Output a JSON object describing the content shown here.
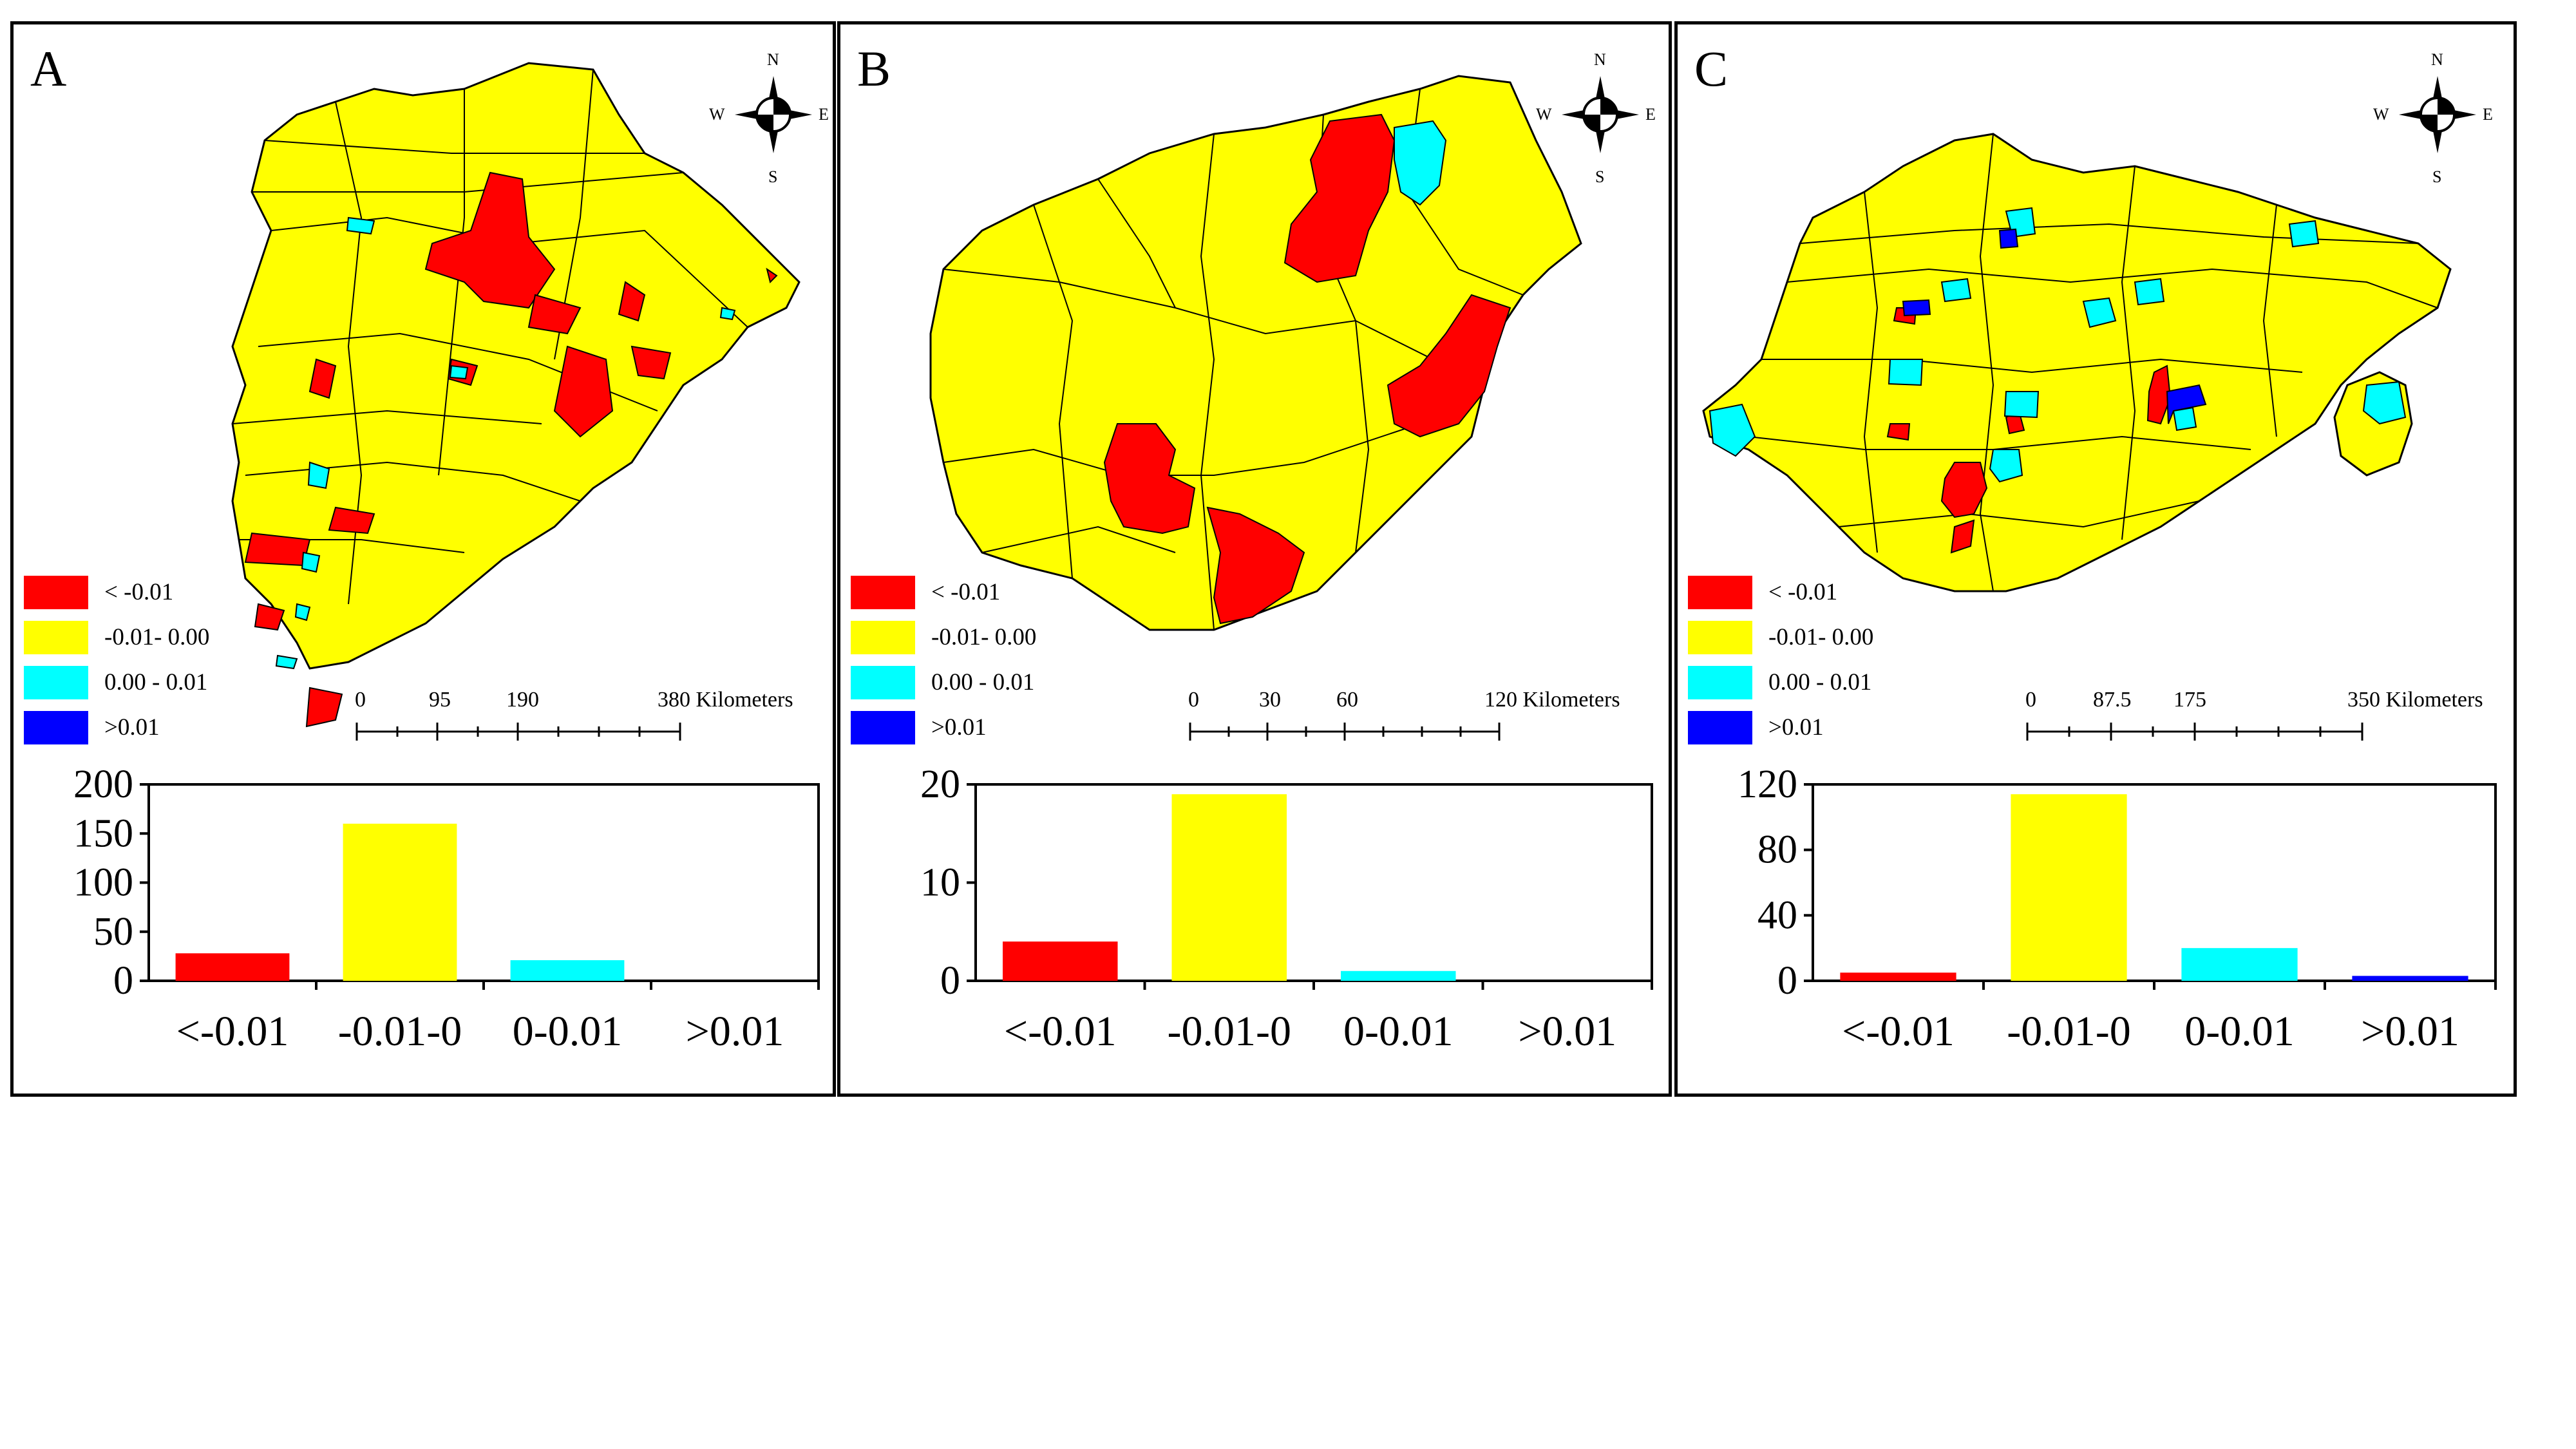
{
  "colors": {
    "red": "#ff0000",
    "yellow": "#ffff00",
    "cyan": "#00ffff",
    "blue": "#0000ff"
  },
  "legend": {
    "items": [
      {
        "label": "< -0.01",
        "color": "#ff0000"
      },
      {
        "label": "-0.01- 0.00",
        "color": "#ffff00"
      },
      {
        "label": "0.00 - 0.01",
        "color": "#00ffff"
      },
      {
        "label": ">0.01",
        "color": "#0000ff"
      }
    ]
  },
  "compass": {
    "n": "N",
    "s": "S",
    "e": "E",
    "w": "W"
  },
  "panels": [
    {
      "letter": "A",
      "scale": {
        "ticks": [
          "0",
          "95",
          "190",
          "380 Kilometers"
        ]
      }
    },
    {
      "letter": "B",
      "scale": {
        "ticks": [
          "0",
          "30",
          "60",
          "120 Kilometers"
        ]
      }
    },
    {
      "letter": "C",
      "scale": {
        "ticks": [
          "0",
          "87.5",
          "175",
          "350 Kilometers"
        ]
      }
    }
  ],
  "chart_data": [
    {
      "type": "bar",
      "categories": [
        "<-0.01",
        "-0.01-0",
        "0-0.01",
        ">0.01"
      ],
      "values": [
        28,
        160,
        21,
        0
      ],
      "colors": [
        "#ff0000",
        "#ffff00",
        "#00ffff",
        "#0000ff"
      ],
      "ylim": [
        0,
        200
      ],
      "yticks": [
        "0",
        "50",
        "100",
        "150",
        "200"
      ],
      "title": "",
      "xlabel": "",
      "ylabel": ""
    },
    {
      "type": "bar",
      "categories": [
        "<-0.01",
        "-0.01-0",
        "0-0.01",
        ">0.01"
      ],
      "values": [
        4,
        19,
        1,
        0
      ],
      "colors": [
        "#ff0000",
        "#ffff00",
        "#00ffff",
        "#0000ff"
      ],
      "ylim": [
        0,
        20
      ],
      "yticks": [
        "0",
        "10",
        "20"
      ],
      "title": "",
      "xlabel": "",
      "ylabel": ""
    },
    {
      "type": "bar",
      "categories": [
        "<-0.01",
        "-0.01-0",
        "0-0.01",
        ">0.01"
      ],
      "values": [
        5,
        114,
        20,
        3
      ],
      "colors": [
        "#ff0000",
        "#ffff00",
        "#00ffff",
        "#0000ff"
      ],
      "ylim": [
        0,
        120
      ],
      "yticks": [
        "0",
        "40",
        "80",
        "120"
      ],
      "title": "",
      "xlabel": "",
      "ylabel": ""
    }
  ]
}
